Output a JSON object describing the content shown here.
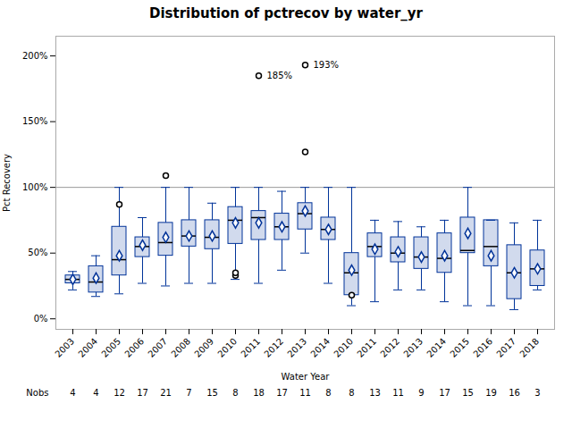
{
  "chart_data": {
    "type": "box",
    "title": "Distribution of pctrecov by water_yr",
    "xlabel": "Water Year",
    "ylabel": "Pct Recovery",
    "categories": [
      "2003",
      "2004",
      "2005",
      "2006",
      "2007",
      "2008",
      "2009",
      "2010",
      "2011",
      "2012",
      "2013",
      "2014",
      "2010",
      "2011",
      "2012",
      "2013",
      "2014",
      "2015",
      "2016",
      "2017",
      "2018"
    ],
    "boxes": [
      {
        "q1": 27,
        "med": 30,
        "q3": 33,
        "whislo": 22,
        "whishi": 36,
        "mean": 30,
        "fliers": []
      },
      {
        "q1": 20,
        "med": 28,
        "q3": 40,
        "whislo": 17,
        "whishi": 48,
        "mean": 31,
        "fliers": []
      },
      {
        "q1": 33,
        "med": 45,
        "q3": 70,
        "whislo": 19,
        "whishi": 100,
        "mean": 48,
        "fliers": [
          87
        ]
      },
      {
        "q1": 47,
        "med": 55,
        "q3": 62,
        "whislo": 27,
        "whishi": 77,
        "mean": 56,
        "fliers": []
      },
      {
        "q1": 48,
        "med": 58,
        "q3": 73,
        "whislo": 25,
        "whishi": 100,
        "mean": 62,
        "fliers": [
          109
        ]
      },
      {
        "q1": 55,
        "med": 63,
        "q3": 75,
        "whislo": 27,
        "whishi": 100,
        "mean": 63,
        "fliers": []
      },
      {
        "q1": 53,
        "med": 62,
        "q3": 75,
        "whislo": 27,
        "whishi": 88,
        "mean": 63,
        "fliers": []
      },
      {
        "q1": 57,
        "med": 75,
        "q3": 85,
        "whislo": 30,
        "whishi": 100,
        "mean": 73,
        "fliers": [
          33,
          35
        ]
      },
      {
        "q1": 60,
        "med": 77,
        "q3": 82,
        "whislo": 27,
        "whishi": 100,
        "mean": 73,
        "fliers": [
          185
        ]
      },
      {
        "q1": 60,
        "med": 70,
        "q3": 80,
        "whislo": 37,
        "whishi": 97,
        "mean": 70,
        "fliers": []
      },
      {
        "q1": 68,
        "med": 80,
        "q3": 88,
        "whislo": 50,
        "whishi": 100,
        "mean": 82,
        "fliers": [
          127,
          193
        ]
      },
      {
        "q1": 60,
        "med": 68,
        "q3": 77,
        "whislo": 27,
        "whishi": 100,
        "mean": 68,
        "fliers": []
      },
      {
        "q1": 18,
        "med": 35,
        "q3": 50,
        "whislo": 10,
        "whishi": 100,
        "mean": 37,
        "fliers": [
          18
        ]
      },
      {
        "q1": 47,
        "med": 55,
        "q3": 65,
        "whislo": 13,
        "whishi": 75,
        "mean": 53,
        "fliers": []
      },
      {
        "q1": 43,
        "med": 50,
        "q3": 62,
        "whislo": 22,
        "whishi": 74,
        "mean": 51,
        "fliers": []
      },
      {
        "q1": 38,
        "med": 47,
        "q3": 62,
        "whislo": 22,
        "whishi": 70,
        "mean": 47,
        "fliers": []
      },
      {
        "q1": 35,
        "med": 46,
        "q3": 65,
        "whislo": 13,
        "whishi": 75,
        "mean": 48,
        "fliers": []
      },
      {
        "q1": 50,
        "med": 52,
        "q3": 77,
        "whislo": 10,
        "whishi": 100,
        "mean": 65,
        "fliers": []
      },
      {
        "q1": 40,
        "med": 55,
        "q3": 75,
        "whislo": 10,
        "whishi": 75,
        "mean": 48,
        "fliers": []
      },
      {
        "q1": 15,
        "med": 35,
        "q3": 56,
        "whislo": 7,
        "whishi": 73,
        "mean": 35,
        "fliers": []
      },
      {
        "q1": 25,
        "med": 38,
        "q3": 52,
        "whislo": 22,
        "whishi": 75,
        "mean": 38,
        "fliers": []
      }
    ],
    "nobs_label": "Nobs",
    "nobs": [
      4,
      4,
      12,
      17,
      21,
      7,
      15,
      8,
      18,
      17,
      11,
      8,
      8,
      13,
      11,
      9,
      17,
      15,
      19,
      16,
      3
    ],
    "annotations": [
      {
        "index": 8,
        "value": 185,
        "label": "185%"
      },
      {
        "index": 10,
        "value": 193,
        "label": "193%"
      }
    ],
    "reference_line": {
      "value": 100,
      "color": "#999999"
    },
    "ylim": [
      -8,
      215
    ],
    "yticks": [
      {
        "value": 0,
        "label": "0%"
      },
      {
        "value": 50,
        "label": "50%"
      },
      {
        "value": 100,
        "label": "100%"
      },
      {
        "value": 150,
        "label": "150%"
      },
      {
        "value": 200,
        "label": "200%"
      }
    ],
    "color": "#003399",
    "grid": false
  }
}
